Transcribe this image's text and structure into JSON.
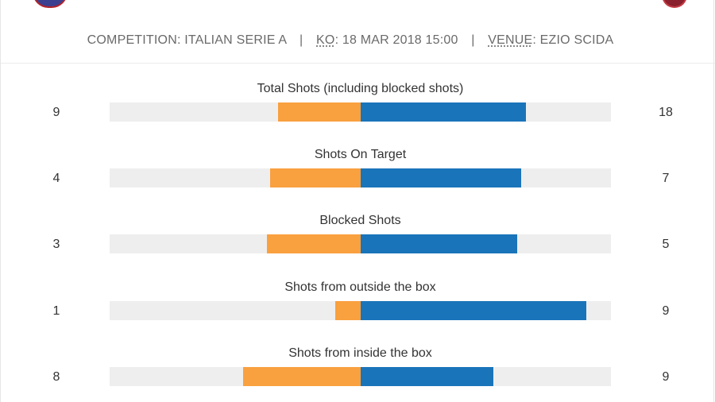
{
  "header": {
    "competition_label": "COMPETITION:",
    "competition_value": "ITALIAN SERIE A",
    "ko_label": "KO",
    "ko_value": ": 18 MAR 2018 15:00",
    "venue_label": "VENUE",
    "venue_value": ": EZIO SCIDA",
    "separator": "|"
  },
  "colors": {
    "home_bar": "#f9a03f",
    "away_bar": "#1a74ba",
    "track": "#eeeeee"
  },
  "stats": [
    {
      "label": "Total Shots (including blocked shots)",
      "home": "9",
      "away": "18",
      "home_fraction": 0.33,
      "away_fraction": 0.66
    },
    {
      "label": "Shots On Target",
      "home": "4",
      "away": "7",
      "home_fraction": 0.36,
      "away_fraction": 0.64
    },
    {
      "label": "Blocked Shots",
      "home": "3",
      "away": "5",
      "home_fraction": 0.375,
      "away_fraction": 0.625
    },
    {
      "label": "Shots from outside the box",
      "home": "1",
      "away": "9",
      "home_fraction": 0.1,
      "away_fraction": 0.9
    },
    {
      "label": "Shots from inside the box",
      "home": "8",
      "away": "9",
      "home_fraction": 0.47,
      "away_fraction": 0.53
    }
  ]
}
